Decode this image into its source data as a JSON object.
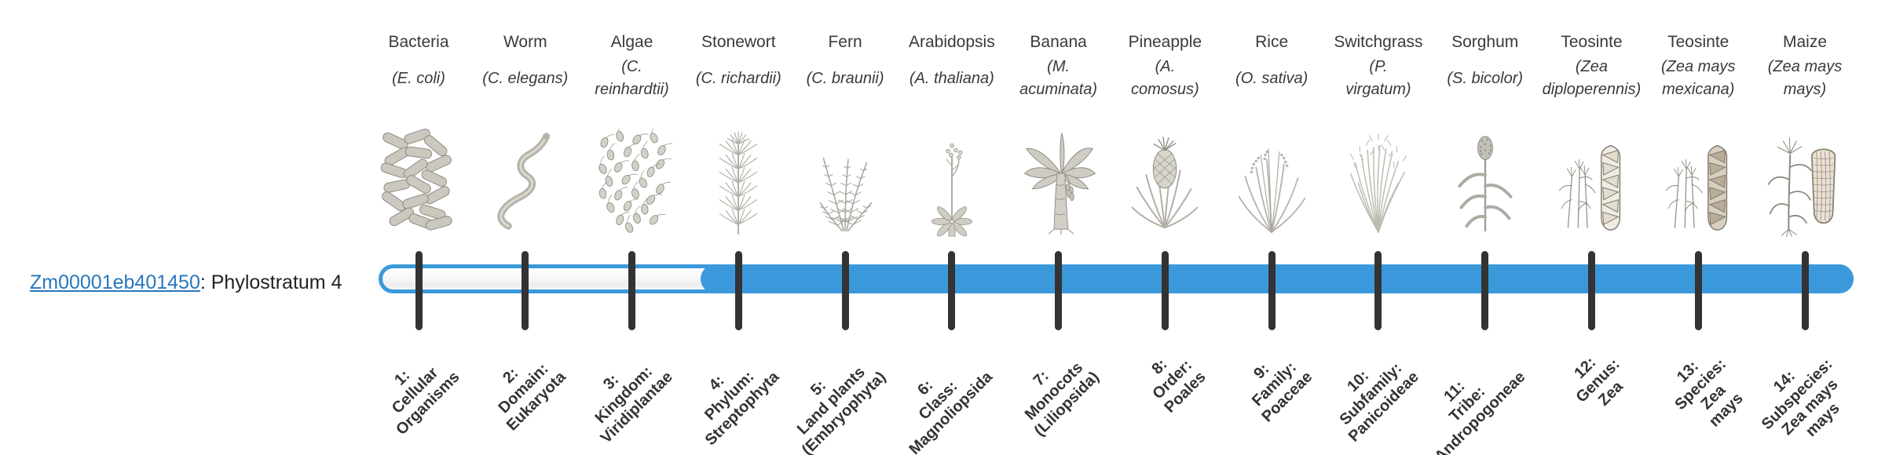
{
  "gene": {
    "id": "Zm00001eb401450",
    "suffix": ": Phylostratum 4"
  },
  "bar": {
    "fill_start_rank": 4,
    "total_ranks": 14
  },
  "colors": {
    "bar_blue": "#3b99db",
    "tick": "#333333",
    "link_blue": "#2777bd",
    "text": "#3a3a3a"
  },
  "phylostrata": [
    {
      "rank": 1,
      "organism": "Bacteria",
      "species_lines": [
        "(E. coli)"
      ],
      "icon": "bacteria-icon",
      "label_lines": [
        "1:",
        "Cellular",
        "Organisms"
      ]
    },
    {
      "rank": 2,
      "organism": "Worm",
      "species_lines": [
        "(C. elegans)"
      ],
      "icon": "worm-icon",
      "label_lines": [
        "2:",
        "Domain:",
        "Eukaryota"
      ]
    },
    {
      "rank": 3,
      "organism": "Algae",
      "species_lines": [
        "(C.",
        "reinhardtii)"
      ],
      "icon": "algae-icon",
      "label_lines": [
        "3:",
        "Kingdom:",
        "Viridiplantae"
      ]
    },
    {
      "rank": 4,
      "organism": "Stonewort",
      "species_lines": [
        "(C. richardii)"
      ],
      "icon": "stonewort-icon",
      "label_lines": [
        "4:",
        "Phylum:",
        "Streptophyta"
      ]
    },
    {
      "rank": 5,
      "organism": "Fern",
      "species_lines": [
        "(C. braunii)"
      ],
      "icon": "fern-icon",
      "label_lines": [
        "5:",
        "Land plants",
        "(Embryophyta)"
      ]
    },
    {
      "rank": 6,
      "organism": "Arabidopsis",
      "species_lines": [
        "(A. thaliana)"
      ],
      "icon": "arabidopsis-icon",
      "label_lines": [
        "6:",
        "Class:",
        "Magnoliopsida"
      ]
    },
    {
      "rank": 7,
      "organism": "Banana",
      "species_lines": [
        "(M.",
        "acuminata)"
      ],
      "icon": "banana-icon",
      "label_lines": [
        "7:",
        "Monocots",
        "(Liliopsida)"
      ]
    },
    {
      "rank": 8,
      "organism": "Pineapple",
      "species_lines": [
        "(A.",
        "comosus)"
      ],
      "icon": "pineapple-icon",
      "label_lines": [
        "8:",
        "Order:",
        "Poales"
      ]
    },
    {
      "rank": 9,
      "organism": "Rice",
      "species_lines": [
        "(O. sativa)"
      ],
      "icon": "rice-icon",
      "label_lines": [
        "9:",
        "Family:",
        "Poaceae"
      ]
    },
    {
      "rank": 10,
      "organism": "Switchgrass",
      "species_lines": [
        "(P.",
        "virgatum)"
      ],
      "icon": "switchgrass-icon",
      "label_lines": [
        "10:",
        "Subfamily:",
        "Panicoideae"
      ]
    },
    {
      "rank": 11,
      "organism": "Sorghum",
      "species_lines": [
        "(S. bicolor)"
      ],
      "icon": "sorghum-icon",
      "label_lines": [
        "11:",
        "Tribe:",
        "Andropogoneae"
      ]
    },
    {
      "rank": 12,
      "organism": "Teosinte",
      "species_lines": [
        "(Zea",
        "diploperennis)"
      ],
      "icon": "teosinte-diploperennis-icon",
      "label_lines": [
        "12:",
        "Genus:",
        "Zea"
      ]
    },
    {
      "rank": 13,
      "organism": "Teosinte",
      "species_lines": [
        "(Zea mays",
        "mexicana)"
      ],
      "icon": "teosinte-mexicana-icon",
      "label_lines": [
        "13:",
        "Species:",
        "Zea",
        "mays"
      ]
    },
    {
      "rank": 14,
      "organism": "Maize",
      "species_lines": [
        "(Zea mays",
        "mays)"
      ],
      "icon": "maize-icon",
      "label_lines": [
        "14:",
        "Subspecies:",
        "Zea mays",
        "mays"
      ]
    }
  ]
}
